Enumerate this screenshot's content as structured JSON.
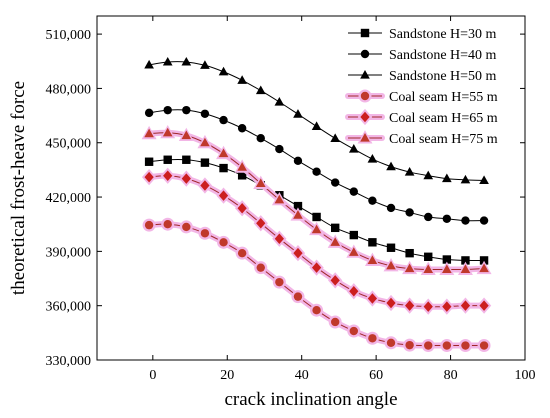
{
  "chart_data": {
    "type": "line",
    "title": "",
    "xlabel": "crack inclination angle",
    "ylabel": "theoretical frost-heave force",
    "xlim": [
      -15,
      100
    ],
    "ylim": [
      330000,
      520000
    ],
    "xticks": [
      0,
      20,
      40,
      60,
      80,
      100
    ],
    "yticks": [
      330000,
      360000,
      390000,
      420000,
      450000,
      480000,
      510000
    ],
    "xtick_labels": [
      "0",
      "20",
      "40",
      "60",
      "80",
      "100"
    ],
    "ytick_labels": [
      "330,000",
      "360,000",
      "390,000",
      "420,000",
      "450,000",
      "480,000",
      "510,000"
    ],
    "grid": false,
    "legend_position": "top-right",
    "x": [
      -1,
      4,
      9,
      14,
      19,
      24,
      29,
      34,
      39,
      44,
      49,
      54,
      59,
      64,
      69,
      74,
      79,
      84,
      89
    ],
    "series": [
      {
        "name": "Sandstone H=30 m",
        "marker": "square",
        "line_color": "#000000",
        "marker_color": "#000000",
        "values": [
          439500,
          440600,
          440600,
          439000,
          436000,
          432000,
          426500,
          421000,
          415000,
          409000,
          403000,
          399000,
          395000,
          392000,
          389000,
          387000,
          385500,
          385000,
          385000
        ]
      },
      {
        "name": "Sandstone H=40 m",
        "marker": "circle",
        "line_color": "#000000",
        "marker_color": "#000000",
        "values": [
          466500,
          468000,
          468000,
          466000,
          462500,
          458000,
          452500,
          446500,
          440000,
          434000,
          428000,
          423000,
          418000,
          414000,
          411500,
          409000,
          408000,
          407000,
          407000
        ]
      },
      {
        "name": "Sandstone H=50 m",
        "marker": "triangle",
        "line_color": "#000000",
        "marker_color": "#000000",
        "values": [
          493000,
          494600,
          494600,
          492800,
          489200,
          484500,
          478800,
          472500,
          465800,
          459000,
          452400,
          446500,
          441000,
          436800,
          433800,
          431800,
          430200,
          429500,
          429200
        ]
      },
      {
        "name": "Coal seam H=55 m",
        "marker": "circle",
        "line_color": "#a0282a",
        "marker_color": "#c0392b",
        "halo": "#f2b6e6",
        "values": [
          404500,
          405000,
          403500,
          400000,
          395000,
          389000,
          381000,
          373000,
          365000,
          357500,
          351000,
          346000,
          342000,
          339500,
          338200,
          338000,
          338000,
          338000,
          338000
        ]
      },
      {
        "name": "Coal seam H=65 m",
        "marker": "diamond",
        "line_color": "#a0282a",
        "marker_color": "#cc1f1f",
        "halo": "#f2b6e6",
        "values": [
          431000,
          431800,
          430200,
          426400,
          420800,
          413800,
          405500,
          397000,
          389000,
          381000,
          374000,
          368000,
          364000,
          361500,
          360000,
          359500,
          359500,
          360000,
          360000
        ]
      },
      {
        "name": "Coal seam H=75 m",
        "marker": "triangle",
        "line_color": "#a0282a",
        "marker_color": "#c0392b",
        "halo": "#f2b6e6",
        "values": [
          455000,
          455500,
          454000,
          450000,
          444000,
          436500,
          427500,
          418500,
          410000,
          402000,
          395000,
          389500,
          385000,
          382000,
          380500,
          380000,
          380000,
          380000,
          380500
        ]
      }
    ]
  }
}
